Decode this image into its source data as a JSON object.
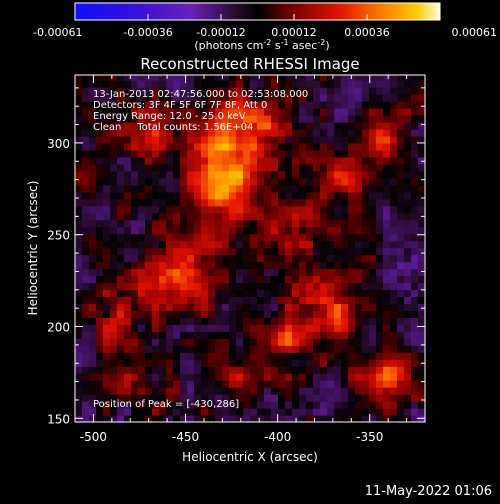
{
  "chart_data": {
    "type": "heatmap",
    "title": "Reconstructed RHESSI Image",
    "xlabel": "Heliocentric X (arcsec)",
    "ylabel": "Heliocentric Y (arcsec)",
    "xlim": [
      -510,
      -320
    ],
    "ylim": [
      148,
      337
    ],
    "x_ticks": [
      -500,
      -450,
      -400,
      -350
    ],
    "y_ticks": [
      150,
      200,
      250,
      300
    ],
    "colorbar": {
      "ticks": [
        "-0.00061",
        "-0.00036",
        "-0.00012",
        "0.00012",
        "0.00036",
        "0.00061"
      ],
      "range": [
        -0.00061,
        0.00061
      ],
      "units_label": "(photons cm",
      "units_sup1": "-2",
      "units_mid1": " s",
      "units_sup2": "-1",
      "units_mid2": " asec",
      "units_sup3": "-2",
      "units_end": ")"
    },
    "annotations": [
      "13-Jan-2013 02:47:56.000 to 02:53:08.000",
      "Detectors: 3F 4F 5F 6F 7F 8F, Att 0",
      "Energy Range: 12.0 - 25.0 keV",
      "Clean     Total counts: 1.56E+04"
    ],
    "peak_label": "Position of Peak = [-430,286]",
    "peak": [
      -430,
      286
    ],
    "sources": [
      {
        "x": -430,
        "y": 286,
        "sx": 12,
        "sy": 22,
        "amp": 1.0
      },
      {
        "x": -410,
        "y": 312,
        "sx": 9,
        "sy": 8,
        "amp": 0.55
      },
      {
        "x": -470,
        "y": 300,
        "sx": 8,
        "sy": 10,
        "amp": 0.35
      },
      {
        "x": -395,
        "y": 255,
        "sx": 14,
        "sy": 10,
        "amp": 0.45
      },
      {
        "x": -455,
        "y": 225,
        "sx": 18,
        "sy": 14,
        "amp": 0.5
      },
      {
        "x": -375,
        "y": 210,
        "sx": 14,
        "sy": 14,
        "amp": 0.55
      },
      {
        "x": -365,
        "y": 280,
        "sx": 10,
        "sy": 10,
        "amp": 0.45
      },
      {
        "x": -345,
        "y": 300,
        "sx": 7,
        "sy": 8,
        "amp": 0.55
      },
      {
        "x": -400,
        "y": 192,
        "sx": 8,
        "sy": 7,
        "amp": 0.4
      },
      {
        "x": -420,
        "y": 170,
        "sx": 10,
        "sy": 8,
        "amp": 0.3
      },
      {
        "x": -340,
        "y": 170,
        "sx": 10,
        "sy": 10,
        "amp": 0.65
      },
      {
        "x": -490,
        "y": 200,
        "sx": 8,
        "sy": 8,
        "amp": 0.35
      },
      {
        "x": -485,
        "y": 170,
        "sx": 7,
        "sy": 7,
        "amp": 0.3
      }
    ],
    "grid": false
  },
  "footer": {
    "timestamp": "11-May-2022 01:06"
  }
}
